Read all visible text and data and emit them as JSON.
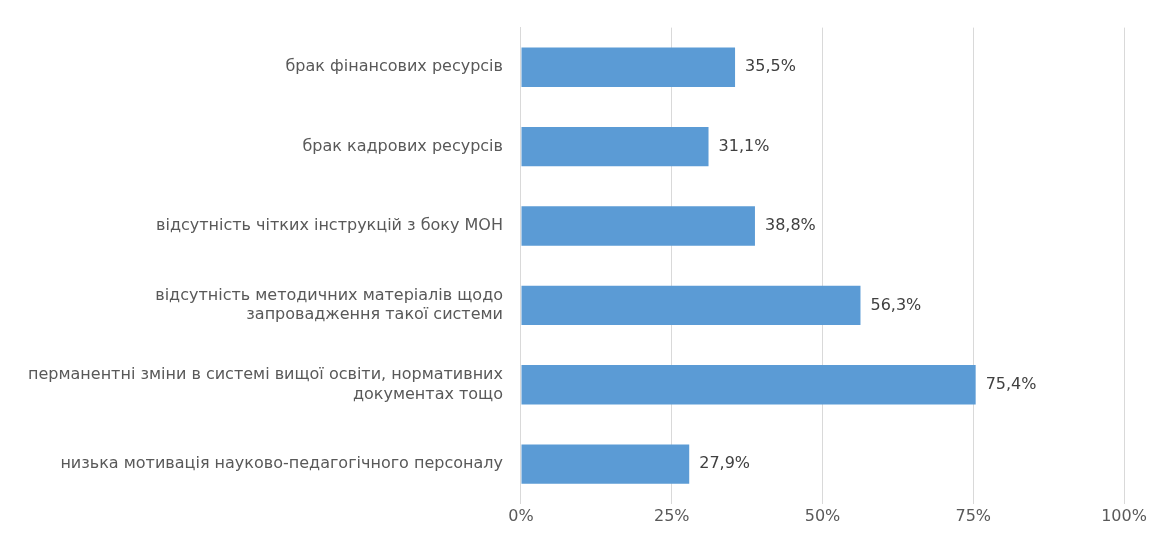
{
  "chart_data": {
    "type": "bar",
    "orientation": "horizontal",
    "categories": [
      "брак фінансових ресурсів",
      "брак кадрових ресурсів",
      "відсутність чітких інструкцій з боку МОН",
      "відсутність методичних матеріалів щодо запровадження такої системи",
      "перманентні зміни в системі вищої освіти, нормативних документах тощо",
      "низька мотивація науково-педагогічного персоналу"
    ],
    "values": [
      35.5,
      31.1,
      38.8,
      56.3,
      75.4,
      27.9
    ],
    "value_labels": [
      "35,5%",
      "31,1%",
      "38,8%",
      "56,3%",
      "75,4%",
      "27,9%"
    ],
    "color": "#5b9bd5",
    "xlim": [
      0,
      100
    ],
    "xticks": [
      {
        "value": 0,
        "label": "0%"
      },
      {
        "value": 25,
        "label": "25%"
      },
      {
        "value": 50,
        "label": "50%"
      },
      {
        "value": 75,
        "label": "75%"
      },
      {
        "value": 100,
        "label": "100%"
      }
    ],
    "grid": "x",
    "legend": false
  }
}
